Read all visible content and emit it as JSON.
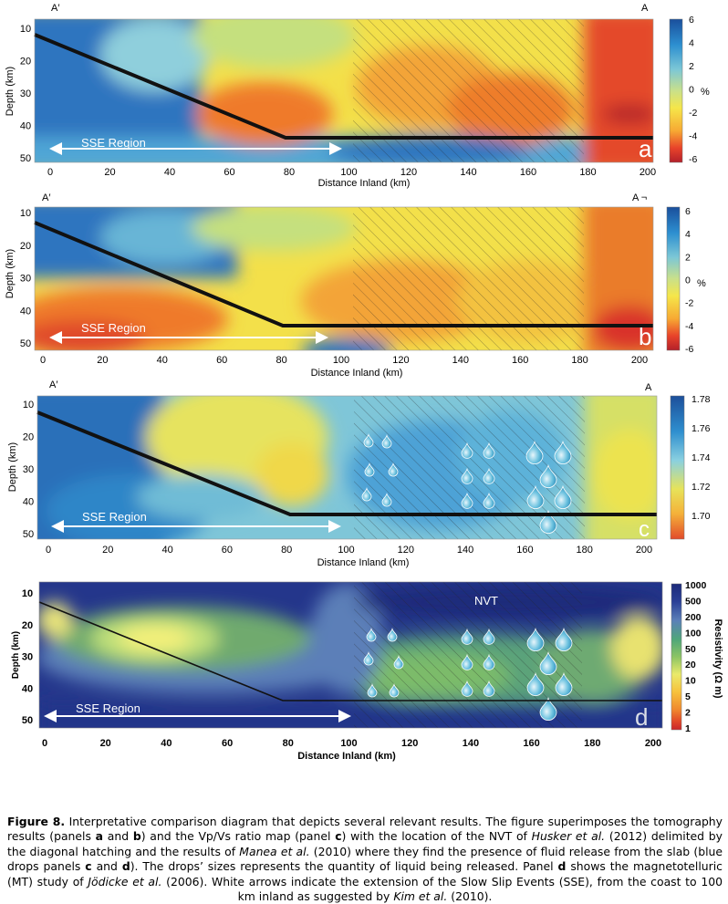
{
  "panels": [
    {
      "id": "a",
      "letter": "a",
      "top_left": "A′",
      "top_right": "A",
      "xlabel": "Distance Inland (km)",
      "ylabel": "Depth (km)",
      "x_ticks": [
        "0",
        "20",
        "40",
        "60",
        "80",
        "100",
        "120",
        "140",
        "160",
        "180",
        "200"
      ],
      "y_ticks": [
        "10",
        "20",
        "30",
        "40",
        "50"
      ],
      "sse_label": "SSE Region",
      "colorbar_ticks": [
        "6",
        "4",
        "2",
        "0",
        "-2",
        "-4",
        "-6"
      ],
      "colorbar_unit": "%"
    },
    {
      "id": "b",
      "letter": "b",
      "top_left": "A′",
      "top_right": "A ¬",
      "xlabel": "Distance Inland (km)",
      "ylabel": "Depth (km)",
      "x_ticks": [
        "0",
        "20",
        "40",
        "60",
        "80",
        "100",
        "120",
        "140",
        "160",
        "180",
        "200"
      ],
      "y_ticks": [
        "10",
        "20",
        "30",
        "40",
        "50"
      ],
      "sse_label": "SSE Region",
      "colorbar_ticks": [
        "6",
        "4",
        "2",
        "0",
        "-2",
        "-4",
        "-6"
      ],
      "colorbar_unit": "%"
    },
    {
      "id": "c",
      "letter": "c",
      "top_left": "A′",
      "top_right": "A",
      "xlabel": "Distance Inland (km)",
      "ylabel": "Depth (km)",
      "x_ticks": [
        "0",
        "20",
        "40",
        "60",
        "80",
        "100",
        "120",
        "140",
        "160",
        "180",
        "200"
      ],
      "y_ticks": [
        "10",
        "20",
        "30",
        "40",
        "50"
      ],
      "sse_label": "SSE Region",
      "colorbar_ticks": [
        "1.78",
        "1.76",
        "1.74",
        "1.72",
        "1.70"
      ]
    },
    {
      "id": "d",
      "letter": "d",
      "nvt_label": "NVT",
      "xlabel": "Distance Inland (km)",
      "ylabel": "Depth (km)",
      "x_ticks": [
        "0",
        "20",
        "40",
        "60",
        "80",
        "100",
        "120",
        "140",
        "160",
        "180",
        "200"
      ],
      "y_ticks": [
        "10",
        "20",
        "30",
        "40",
        "50"
      ],
      "sse_label": "SSE Region",
      "colorbar_ticks": [
        "1000",
        "500",
        "200",
        "100",
        "50",
        "20",
        "10",
        "5",
        "2",
        "1"
      ],
      "colorbar_title": "Resistivity (Ω m)"
    }
  ],
  "caption": {
    "label": "Figure 8.",
    "p1": " Interpretative comparison diagram that depicts several relevant results. The figure superimposes the tomography results (panels ",
    "a": "a",
    "and1": " and ",
    "b": "b",
    "p2": ") and the Vp/Vs ratio map (panel ",
    "c": "c",
    "p3": ") with the location of the NVT of ",
    "ref1": "Husker et al.",
    "p4": " (2012) delimited by the diagonal hatching and the results of ",
    "ref2": "Manea et al.",
    "p5": " (2010) where they find the presence of fluid release from the slab (blue drops panels ",
    "c2": "c",
    "and2": " and ",
    "d": "d",
    "p6": "). The drops’ sizes represents the quantity of liquid being released. Panel ",
    "d2": "d",
    "p7": " shows the magnetotelluric (MT) study of ",
    "ref3": "Jödicke et al.",
    "p8": " (2006). White arrows indicate the extension of the Slow Slip Events (SSE), from the coast to 100 km inland as suggested by ",
    "ref4": "Kim et al.",
    "p9": " (2010)."
  },
  "colors": {
    "velocity_ramp": [
      "#1a4f9c",
      "#2d8fd0",
      "#7cc7d6",
      "#c9e08a",
      "#f5e64a",
      "#f7a933",
      "#e8432a",
      "#b3202a"
    ],
    "vpvs_ramp": [
      "#1c4f9a",
      "#2f8fcf",
      "#8ad0e0",
      "#e7e35a",
      "#f4b23a",
      "#e24b2b"
    ],
    "resistivity_ramp": [
      "#1c2a7a",
      "#2a3f96",
      "#5b7fb8",
      "#4fa67a",
      "#8cc464",
      "#eaea6a",
      "#f7c23d",
      "#f08a2e",
      "#e24a29",
      "#c9252a"
    ],
    "slab_line": "#111111",
    "arrow": "#ffffff"
  }
}
